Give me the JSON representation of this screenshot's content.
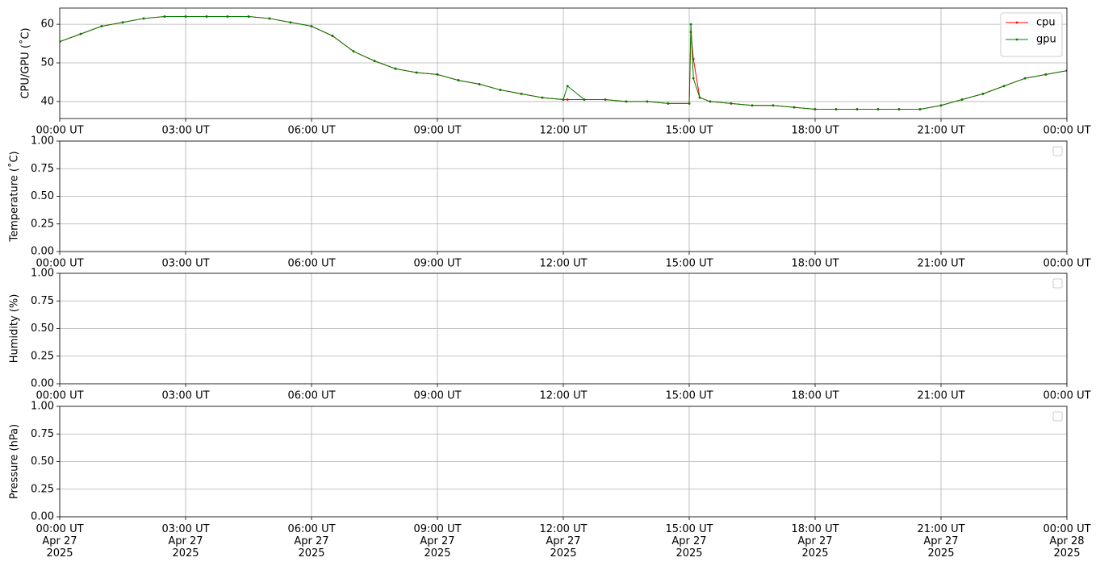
{
  "chart_data": [
    {
      "type": "line",
      "ylabel": "CPU/GPU (˚C)",
      "x": [
        0,
        0.5,
        1,
        1.5,
        2,
        2.5,
        3,
        3.5,
        4,
        4.5,
        5,
        5.5,
        6,
        6.5,
        7,
        7.5,
        8,
        8.5,
        9,
        9.5,
        10,
        10.5,
        11,
        11.5,
        12,
        12.1,
        12.5,
        13,
        13.5,
        14,
        14.5,
        15,
        15.04,
        15.1,
        15.25,
        15.5,
        16,
        16.5,
        17,
        17.5,
        18,
        18.5,
        19,
        19.5,
        20,
        20.5,
        21,
        21.5,
        22,
        22.5,
        23,
        23.5,
        24
      ],
      "series": [
        {
          "name": "cpu",
          "color": "#ff0000",
          "values": [
            55.5,
            57.5,
            59.5,
            60.5,
            61.5,
            62,
            62,
            62,
            62,
            62,
            61.5,
            60.5,
            59.5,
            57,
            53,
            50.5,
            48.5,
            47.5,
            47,
            45.5,
            44.5,
            43,
            42,
            41,
            40.5,
            40.5,
            40.5,
            40.5,
            40,
            40,
            39.5,
            39.5,
            58,
            51,
            41,
            40,
            39.5,
            39,
            39,
            38.5,
            38,
            38,
            38,
            38,
            38,
            38,
            39,
            40.5,
            42,
            44,
            46,
            47,
            48
          ]
        },
        {
          "name": "gpu",
          "color": "#008000",
          "values": [
            55.5,
            57.5,
            59.5,
            60.5,
            61.5,
            62,
            62,
            62,
            62,
            62,
            61.5,
            60.5,
            59.5,
            57,
            53,
            50.5,
            48.5,
            47.5,
            47,
            45.5,
            44.5,
            43,
            42,
            41,
            40.5,
            44,
            40.5,
            40.5,
            40,
            40,
            39.5,
            39.5,
            60,
            46,
            41,
            40,
            39.5,
            39,
            39,
            38.5,
            38,
            38,
            38,
            38,
            38,
            38,
            39,
            40.5,
            42,
            44,
            46,
            47,
            48
          ]
        }
      ],
      "legend": "upper right",
      "grid": true,
      "xlim": [
        0,
        24
      ],
      "xticks": [
        {
          "value": 0,
          "label": "00:00 UT"
        },
        {
          "value": 3,
          "label": "03:00 UT"
        },
        {
          "value": 6,
          "label": "06:00 UT"
        },
        {
          "value": 9,
          "label": "09:00 UT"
        },
        {
          "value": 12,
          "label": "12:00 UT"
        },
        {
          "value": 15,
          "label": "15:00 UT"
        },
        {
          "value": 18,
          "label": "18:00 UT"
        },
        {
          "value": 21,
          "label": "21:00 UT"
        },
        {
          "value": 24,
          "label": "00:00 UT"
        }
      ],
      "ylim": [
        35.6,
        64.2
      ],
      "yticks": [
        40,
        50,
        60
      ]
    },
    {
      "type": "line",
      "ylabel": "Temperature (˚C)",
      "grid": true,
      "xlim": [
        0,
        24
      ],
      "xticks": [
        {
          "value": 0,
          "label": "00:00 UT"
        },
        {
          "value": 3,
          "label": "03:00 UT"
        },
        {
          "value": 6,
          "label": "06:00 UT"
        },
        {
          "value": 9,
          "label": "09:00 UT"
        },
        {
          "value": 12,
          "label": "12:00 UT"
        },
        {
          "value": 15,
          "label": "15:00 UT"
        },
        {
          "value": 18,
          "label": "18:00 UT"
        },
        {
          "value": 21,
          "label": "21:00 UT"
        },
        {
          "value": 24,
          "label": "00:00 UT"
        }
      ],
      "ylim": [
        0,
        1
      ],
      "yticks": [
        {
          "value": 0,
          "label": "0.00"
        },
        {
          "value": 0.25,
          "label": "0.25"
        },
        {
          "value": 0.5,
          "label": "0.50"
        },
        {
          "value": 0.75,
          "label": "0.75"
        },
        {
          "value": 1,
          "label": "1.00"
        }
      ]
    },
    {
      "type": "line",
      "ylabel": "Humidity (%)",
      "grid": true,
      "xlim": [
        0,
        24
      ],
      "xticks": [
        {
          "value": 0,
          "label": "00:00 UT"
        },
        {
          "value": 3,
          "label": "03:00 UT"
        },
        {
          "value": 6,
          "label": "06:00 UT"
        },
        {
          "value": 9,
          "label": "09:00 UT"
        },
        {
          "value": 12,
          "label": "12:00 UT"
        },
        {
          "value": 15,
          "label": "15:00 UT"
        },
        {
          "value": 18,
          "label": "18:00 UT"
        },
        {
          "value": 21,
          "label": "21:00 UT"
        },
        {
          "value": 24,
          "label": "00:00 UT"
        }
      ],
      "ylim": [
        0,
        1
      ],
      "yticks": [
        {
          "value": 0,
          "label": "0.00"
        },
        {
          "value": 0.25,
          "label": "0.25"
        },
        {
          "value": 0.5,
          "label": "0.50"
        },
        {
          "value": 0.75,
          "label": "0.75"
        },
        {
          "value": 1,
          "label": "1.00"
        }
      ]
    },
    {
      "type": "line",
      "ylabel": "Pressure (hPa)",
      "grid": true,
      "xlim": [
        0,
        24
      ],
      "xticks": [
        {
          "value": 0,
          "label": "00:00 UT\nApr 27\n2025"
        },
        {
          "value": 3,
          "label": "03:00 UT\nApr 27\n2025"
        },
        {
          "value": 6,
          "label": "06:00 UT\nApr 27\n2025"
        },
        {
          "value": 9,
          "label": "09:00 UT\nApr 27\n2025"
        },
        {
          "value": 12,
          "label": "12:00 UT\nApr 27\n2025"
        },
        {
          "value": 15,
          "label": "15:00 UT\nApr 27\n2025"
        },
        {
          "value": 18,
          "label": "18:00 UT\nApr 27\n2025"
        },
        {
          "value": 21,
          "label": "21:00 UT\nApr 27\n2025"
        },
        {
          "value": 24,
          "label": "00:00 UT\nApr 28\n2025"
        }
      ],
      "ylim": [
        0,
        1
      ],
      "yticks": [
        {
          "value": 0,
          "label": "0.00"
        },
        {
          "value": 0.25,
          "label": "0.25"
        },
        {
          "value": 0.5,
          "label": "0.50"
        },
        {
          "value": 0.75,
          "label": "0.75"
        },
        {
          "value": 1,
          "label": "1.00"
        }
      ]
    }
  ]
}
